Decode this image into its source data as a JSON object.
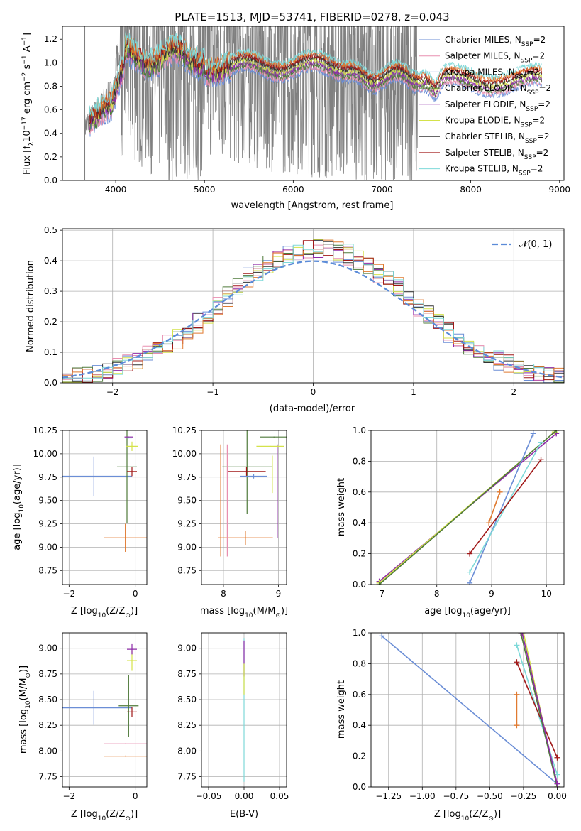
{
  "figure": {
    "title": "PLATE=1513, MJD=53741, FIBERID=0278, z=0.043"
  },
  "colors": {
    "Chabrier MILES": "#6b8ed6",
    "Salpeter MILES": "#e88fb0",
    "Kroupa MILES": "#6b8ed6",
    "Chabrier ELODIE": "#4f7a3a",
    "Salpeter ELODIE": "#8e2aa8",
    "Kroupa ELODIE": "#d4e24a",
    "Chabrier STELIB": "#333333",
    "Salpeter STELIB": "#a01818",
    "Kroupa STELIB": "#7ed9d9",
    "orange": "#e07a30",
    "data": "#808080",
    "normal": "#5b8bd8"
  },
  "chart_data": [
    {
      "id": "spectrum",
      "type": "line",
      "title": "PLATE=1513, MJD=53741, FIBERID=0278, z=0.043",
      "xlabel": "wavelength [Angstrom, rest frame]",
      "ylabel_main": "Flux [f",
      "ylabel_sub": "λ",
      "ylabel_rest": "10",
      "ylabel_sup1": "−17",
      "ylabel_tail": " erg cm",
      "ylabel_sup2": "−2",
      "ylabel_s": " s",
      "ylabel_sup3": "−1",
      "ylabel_A": " A",
      "ylabel_sup4": "−1",
      "ylabel_end": "]",
      "xlim": [
        3400,
        9050
      ],
      "ylim": [
        0,
        1.31
      ],
      "xticks": [
        4000,
        5000,
        6000,
        7000,
        8000,
        9000
      ],
      "yticks": [
        0.0,
        0.2,
        0.4,
        0.6,
        0.8,
        1.0,
        1.2
      ],
      "legend": [
        {
          "prefix": "Chabrier MILES, N",
          "sub": "SSP",
          "suffix": "=2",
          "color": "#6b8ed6"
        },
        {
          "prefix": "Salpeter MILES, N",
          "sub": "SSP",
          "suffix": "=2",
          "color": "#e88fb0"
        },
        {
          "prefix": "Kroupa MILES, N",
          "sub": "SSP",
          "suffix": "=2",
          "color": "#6b8ed6"
        },
        {
          "prefix": "Chabrier ELODIE, N",
          "sub": "SSP",
          "suffix": "=2",
          "color": "#4f7a3a"
        },
        {
          "prefix": "Salpeter ELODIE, N",
          "sub": "SSP",
          "suffix": "=2",
          "color": "#8e2aa8"
        },
        {
          "prefix": "Kroupa ELODIE, N",
          "sub": "SSP",
          "suffix": "=2",
          "color": "#d4e24a"
        },
        {
          "prefix": "Chabrier STELIB, N",
          "sub": "SSP",
          "suffix": "=2",
          "color": "#333333"
        },
        {
          "prefix": "Salpeter STELIB, N",
          "sub": "SSP",
          "suffix": "=2",
          "color": "#a01818"
        },
        {
          "prefix": "Kroupa STELIB, N",
          "sub": "SSP",
          "suffix": "=2",
          "color": "#7ed9d9"
        }
      ],
      "data_range": [
        3650,
        7400
      ],
      "model_range": [
        3700,
        8800
      ]
    },
    {
      "id": "residuals",
      "type": "line",
      "xlabel": "(data-model)/error",
      "ylabel": "Normed distribution",
      "xlim": [
        -2.5,
        2.5
      ],
      "ylim": [
        0,
        0.505
      ],
      "xticks": [
        -2,
        -1,
        0,
        1,
        2
      ],
      "yticks": [
        0.0,
        0.1,
        0.2,
        0.3,
        0.4,
        0.5
      ],
      "legend_label": "𝒩(0, 1)",
      "grid": true
    },
    {
      "id": "age_vs_Z",
      "type": "scatter",
      "xlabel": "Z [log",
      "xlabel_sub": "10",
      "xlabel_rest": "(Z/Z",
      "xlabel_sub2": "⊙",
      "xlabel_end": ")]",
      "ylabel": "age  [log",
      "ylabel_sub": "10",
      "ylabel_end": "(age/yr)]",
      "xlim": [
        -2.2,
        0.35
      ],
      "ylim": [
        8.6,
        10.25
      ],
      "xticks": [
        -2,
        0
      ],
      "yticks": [
        8.75,
        9.0,
        9.25,
        9.5,
        9.75,
        10.0,
        10.25
      ],
      "points": [
        {
          "x": -1.25,
          "y": 9.76,
          "xerr": 2.3,
          "yerr": 0.42,
          "color": "#6b8ed6"
        },
        {
          "x": -0.3,
          "y": 9.1,
          "xerr": 1.3,
          "yerr": 0.3,
          "color": "#e07a30"
        },
        {
          "x": -0.25,
          "y": 9.86,
          "xerr": 0.6,
          "yerr": 1.2,
          "color": "#4f7a3a"
        },
        {
          "x": -0.1,
          "y": 10.08,
          "xerr": 0.35,
          "yerr": 0.1,
          "color": "#d4e24a"
        },
        {
          "x": -0.1,
          "y": 9.81,
          "xerr": 0.3,
          "yerr": 0.1,
          "color": "#a01818"
        },
        {
          "x": -0.2,
          "y": 10.18,
          "xerr": 0.25,
          "yerr": 0.01,
          "color": "#8e2aa8"
        },
        {
          "x": -0.2,
          "y": 10.17,
          "xerr": 0.2,
          "yerr": 0.01,
          "color": "#7ed9d9"
        }
      ]
    },
    {
      "id": "age_vs_mass",
      "type": "scatter",
      "xlabel": "mass [log",
      "xlabel_sub": "10",
      "xlabel_rest": "(M/M",
      "xlabel_sub2": "⊙",
      "xlabel_end": ")]",
      "xlim": [
        7.6,
        9.15
      ],
      "ylim": [
        8.6,
        10.25
      ],
      "xticks": [
        8,
        9
      ],
      "yticks": [
        8.75,
        9.0,
        9.25,
        9.5,
        9.75,
        10.0,
        10.25
      ],
      "points": [
        {
          "x": 8.43,
          "y": 9.86,
          "xerr": 0.9,
          "yerr": 1.0,
          "color": "#4f7a3a"
        },
        {
          "x": 8.42,
          "y": 9.81,
          "xerr": 0.7,
          "yerr": 0.1,
          "color": "#a01818"
        },
        {
          "x": 8.4,
          "y": 9.1,
          "xerr": 1.0,
          "yerr": 0.15,
          "color": "#e07a30"
        },
        {
          "x": 8.55,
          "y": 9.76,
          "xerr": 0.5,
          "yerr": 0.05,
          "color": "#6b8ed6"
        },
        {
          "x": 7.95,
          "y": 9.5,
          "xerr": 0.01,
          "yerr": 1.2,
          "color": "#e07a30"
        },
        {
          "x": 8.07,
          "y": 9.5,
          "xerr": 0.01,
          "yerr": 1.2,
          "color": "#e88fb0"
        },
        {
          "x": 8.89,
          "y": 9.78,
          "xerr": 0.01,
          "yerr": 0.4,
          "color": "#d4e24a"
        },
        {
          "x": 8.98,
          "y": 9.6,
          "xerr": 0.01,
          "yerr": 1.0,
          "color": "#8e2aa8"
        },
        {
          "x": 8.85,
          "y": 10.08,
          "xerr": 0.5,
          "yerr": 0.01,
          "color": "#d4e24a"
        },
        {
          "x": 8.92,
          "y": 10.18,
          "xerr": 0.5,
          "yerr": 0.01,
          "color": "#4f7a3a"
        }
      ]
    },
    {
      "id": "weight_vs_age",
      "type": "line",
      "xlabel": "age  [log",
      "xlabel_sub": "10",
      "xlabel_end": "(age/yr)]",
      "ylabel": "mass weight",
      "xlim": [
        6.8,
        10.32
      ],
      "ylim": [
        0,
        1.0
      ],
      "xticks": [
        7,
        8,
        9,
        10
      ],
      "yticks": [
        0.0,
        0.2,
        0.4,
        0.6,
        0.8,
        1.0
      ],
      "series": [
        {
          "x": [
            6.95,
            10.18
          ],
          "y": [
            0.02,
            0.98
          ],
          "color": "#8e2aa8"
        },
        {
          "x": [
            6.95,
            10.15
          ],
          "y": [
            0.01,
            0.99
          ],
          "color": "#d4e24a"
        },
        {
          "x": [
            6.95,
            10.18
          ],
          "y": [
            0.0,
            1.0
          ],
          "color": "#4f7a3a"
        },
        {
          "x": [
            8.6,
            9.76
          ],
          "y": [
            0.01,
            0.98
          ],
          "color": "#6b8ed6"
        },
        {
          "x": [
            8.6,
            9.9
          ],
          "y": [
            0.08,
            0.92
          ],
          "color": "#7ed9d9"
        },
        {
          "x": [
            8.6,
            9.9
          ],
          "y": [
            0.2,
            0.81
          ],
          "color": "#a01818"
        },
        {
          "x": [
            8.95,
            9.15
          ],
          "y": [
            0.4,
            0.6
          ],
          "color": "#e07a30"
        }
      ]
    },
    {
      "id": "mass_vs_Z",
      "type": "scatter",
      "xlabel": "Z [log",
      "xlabel_sub": "10",
      "xlabel_rest": "(Z/Z",
      "xlabel_sub2": "⊙",
      "xlabel_end": ")]",
      "ylabel": "mass [log",
      "ylabel_sub": "10",
      "ylabel_end": "(M/M",
      "ylabel_sub2": "⊙",
      "ylabel_end2": ")]",
      "xlim": [
        -2.2,
        0.35
      ],
      "ylim": [
        7.65,
        9.15
      ],
      "xticks": [
        -2,
        0
      ],
      "yticks": [
        7.75,
        8.0,
        8.25,
        8.5,
        8.75,
        9.0
      ],
      "points": [
        {
          "x": -1.25,
          "y": 8.42,
          "xerr": 2.3,
          "yerr": 0.33,
          "color": "#6b8ed6"
        },
        {
          "x": -0.3,
          "y": 8.07,
          "xerr": 1.3,
          "yerr": 0.01,
          "color": "#e88fb0"
        },
        {
          "x": -0.3,
          "y": 7.95,
          "xerr": 1.3,
          "yerr": 0.01,
          "color": "#e07a30"
        },
        {
          "x": -0.2,
          "y": 8.44,
          "xerr": 0.6,
          "yerr": 0.6,
          "color": "#4f7a3a"
        },
        {
          "x": -0.1,
          "y": 8.38,
          "xerr": 0.3,
          "yerr": 0.1,
          "color": "#a01818"
        },
        {
          "x": -0.1,
          "y": 8.88,
          "xerr": 0.3,
          "yerr": 0.2,
          "color": "#d4e24a"
        },
        {
          "x": -0.1,
          "y": 8.99,
          "xerr": 0.3,
          "yerr": 0.1,
          "color": "#8e2aa8"
        }
      ]
    },
    {
      "id": "mass_vs_EBV",
      "type": "scatter",
      "xlabel": "E(B-V)",
      "xlim": [
        -0.06,
        0.06
      ],
      "ylim": [
        7.65,
        9.15
      ],
      "xticks": [
        -0.05,
        0.0,
        0.05
      ],
      "xticklabels": [
        "−0.05",
        "0.00",
        "0.05"
      ],
      "yticks": [
        7.75,
        8.0,
        8.25,
        8.5,
        8.75,
        9.0
      ],
      "points": [
        {
          "x": 0.0,
          "y": 8.4,
          "yerr": 1.4,
          "color": "#7ed9d9"
        },
        {
          "x": 0.0,
          "y": 8.9,
          "yerr": 0.35,
          "color": "#8e2aa8"
        },
        {
          "x": 0.0,
          "y": 8.7,
          "yerr": 0.3,
          "color": "#d4e24a"
        }
      ]
    },
    {
      "id": "weight_vs_Z",
      "type": "line",
      "xlabel": "Z [log",
      "xlabel_sub": "10",
      "xlabel_rest": "(Z/Z",
      "xlabel_sub2": "⊙",
      "xlabel_end": ")]",
      "ylabel": "mass weight",
      "xlim": [
        -1.38,
        0.05
      ],
      "ylim": [
        0,
        1.0
      ],
      "xticks": [
        -1.25,
        -1.0,
        -0.75,
        -0.5,
        -0.25,
        0.0
      ],
      "xticklabels": [
        "−1.25",
        "−1.00",
        "−0.75",
        "−0.50",
        "−0.25",
        "0.00"
      ],
      "yticks": [
        0.0,
        0.2,
        0.4,
        0.6,
        0.8,
        1.0
      ],
      "series": [
        {
          "x": [
            -1.3,
            0.0
          ],
          "y": [
            0.98,
            0.02
          ],
          "color": "#6b8ed6"
        },
        {
          "x": [
            -0.3,
            0.0
          ],
          "y": [
            0.92,
            0.08
          ],
          "color": "#7ed9d9"
        },
        {
          "x": [
            -0.3,
            0.0
          ],
          "y": [
            0.81,
            0.19
          ],
          "color": "#a01818"
        },
        {
          "x": [
            -0.3,
            -0.3
          ],
          "y": [
            0.4,
            0.6
          ],
          "color": "#e07a30"
        },
        {
          "x": [
            -0.25,
            0.0
          ],
          "y": [
            1.0,
            0.0
          ],
          "color": "#d4e24a"
        },
        {
          "x": [
            -0.27,
            0.0
          ],
          "y": [
            1.0,
            0.0
          ],
          "color": "#4f7a3a"
        },
        {
          "x": [
            -0.26,
            0.0
          ],
          "y": [
            1.0,
            0.02
          ],
          "color": "#8e2aa8"
        }
      ]
    }
  ]
}
